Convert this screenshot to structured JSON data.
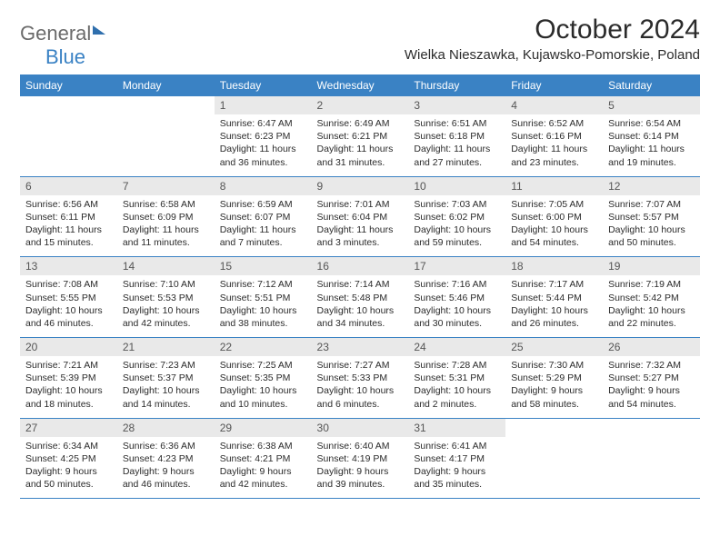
{
  "logo": {
    "part1": "General",
    "part2": "Blue"
  },
  "title": "October 2024",
  "location": "Wielka Nieszawka, Kujawsko-Pomorskie, Poland",
  "colors": {
    "header_bg": "#3a82c4",
    "header_fg": "#ffffff",
    "daynum_bg": "#e9e9e9",
    "text": "#2b2b2b"
  },
  "weekdays": [
    "Sunday",
    "Monday",
    "Tuesday",
    "Wednesday",
    "Thursday",
    "Friday",
    "Saturday"
  ],
  "weeks": [
    [
      null,
      null,
      {
        "n": "1",
        "sunrise": "6:47 AM",
        "sunset": "6:23 PM",
        "daylight": "11 hours and 36 minutes."
      },
      {
        "n": "2",
        "sunrise": "6:49 AM",
        "sunset": "6:21 PM",
        "daylight": "11 hours and 31 minutes."
      },
      {
        "n": "3",
        "sunrise": "6:51 AM",
        "sunset": "6:18 PM",
        "daylight": "11 hours and 27 minutes."
      },
      {
        "n": "4",
        "sunrise": "6:52 AM",
        "sunset": "6:16 PM",
        "daylight": "11 hours and 23 minutes."
      },
      {
        "n": "5",
        "sunrise": "6:54 AM",
        "sunset": "6:14 PM",
        "daylight": "11 hours and 19 minutes."
      }
    ],
    [
      {
        "n": "6",
        "sunrise": "6:56 AM",
        "sunset": "6:11 PM",
        "daylight": "11 hours and 15 minutes."
      },
      {
        "n": "7",
        "sunrise": "6:58 AM",
        "sunset": "6:09 PM",
        "daylight": "11 hours and 11 minutes."
      },
      {
        "n": "8",
        "sunrise": "6:59 AM",
        "sunset": "6:07 PM",
        "daylight": "11 hours and 7 minutes."
      },
      {
        "n": "9",
        "sunrise": "7:01 AM",
        "sunset": "6:04 PM",
        "daylight": "11 hours and 3 minutes."
      },
      {
        "n": "10",
        "sunrise": "7:03 AM",
        "sunset": "6:02 PM",
        "daylight": "10 hours and 59 minutes."
      },
      {
        "n": "11",
        "sunrise": "7:05 AM",
        "sunset": "6:00 PM",
        "daylight": "10 hours and 54 minutes."
      },
      {
        "n": "12",
        "sunrise": "7:07 AM",
        "sunset": "5:57 PM",
        "daylight": "10 hours and 50 minutes."
      }
    ],
    [
      {
        "n": "13",
        "sunrise": "7:08 AM",
        "sunset": "5:55 PM",
        "daylight": "10 hours and 46 minutes."
      },
      {
        "n": "14",
        "sunrise": "7:10 AM",
        "sunset": "5:53 PM",
        "daylight": "10 hours and 42 minutes."
      },
      {
        "n": "15",
        "sunrise": "7:12 AM",
        "sunset": "5:51 PM",
        "daylight": "10 hours and 38 minutes."
      },
      {
        "n": "16",
        "sunrise": "7:14 AM",
        "sunset": "5:48 PM",
        "daylight": "10 hours and 34 minutes."
      },
      {
        "n": "17",
        "sunrise": "7:16 AM",
        "sunset": "5:46 PM",
        "daylight": "10 hours and 30 minutes."
      },
      {
        "n": "18",
        "sunrise": "7:17 AM",
        "sunset": "5:44 PM",
        "daylight": "10 hours and 26 minutes."
      },
      {
        "n": "19",
        "sunrise": "7:19 AM",
        "sunset": "5:42 PM",
        "daylight": "10 hours and 22 minutes."
      }
    ],
    [
      {
        "n": "20",
        "sunrise": "7:21 AM",
        "sunset": "5:39 PM",
        "daylight": "10 hours and 18 minutes."
      },
      {
        "n": "21",
        "sunrise": "7:23 AM",
        "sunset": "5:37 PM",
        "daylight": "10 hours and 14 minutes."
      },
      {
        "n": "22",
        "sunrise": "7:25 AM",
        "sunset": "5:35 PM",
        "daylight": "10 hours and 10 minutes."
      },
      {
        "n": "23",
        "sunrise": "7:27 AM",
        "sunset": "5:33 PM",
        "daylight": "10 hours and 6 minutes."
      },
      {
        "n": "24",
        "sunrise": "7:28 AM",
        "sunset": "5:31 PM",
        "daylight": "10 hours and 2 minutes."
      },
      {
        "n": "25",
        "sunrise": "7:30 AM",
        "sunset": "5:29 PM",
        "daylight": "9 hours and 58 minutes."
      },
      {
        "n": "26",
        "sunrise": "7:32 AM",
        "sunset": "5:27 PM",
        "daylight": "9 hours and 54 minutes."
      }
    ],
    [
      {
        "n": "27",
        "sunrise": "6:34 AM",
        "sunset": "4:25 PM",
        "daylight": "9 hours and 50 minutes."
      },
      {
        "n": "28",
        "sunrise": "6:36 AM",
        "sunset": "4:23 PM",
        "daylight": "9 hours and 46 minutes."
      },
      {
        "n": "29",
        "sunrise": "6:38 AM",
        "sunset": "4:21 PM",
        "daylight": "9 hours and 42 minutes."
      },
      {
        "n": "30",
        "sunrise": "6:40 AM",
        "sunset": "4:19 PM",
        "daylight": "9 hours and 39 minutes."
      },
      {
        "n": "31",
        "sunrise": "6:41 AM",
        "sunset": "4:17 PM",
        "daylight": "9 hours and 35 minutes."
      },
      null,
      null
    ]
  ],
  "labels": {
    "sunrise": "Sunrise:",
    "sunset": "Sunset:",
    "daylight": "Daylight:"
  }
}
